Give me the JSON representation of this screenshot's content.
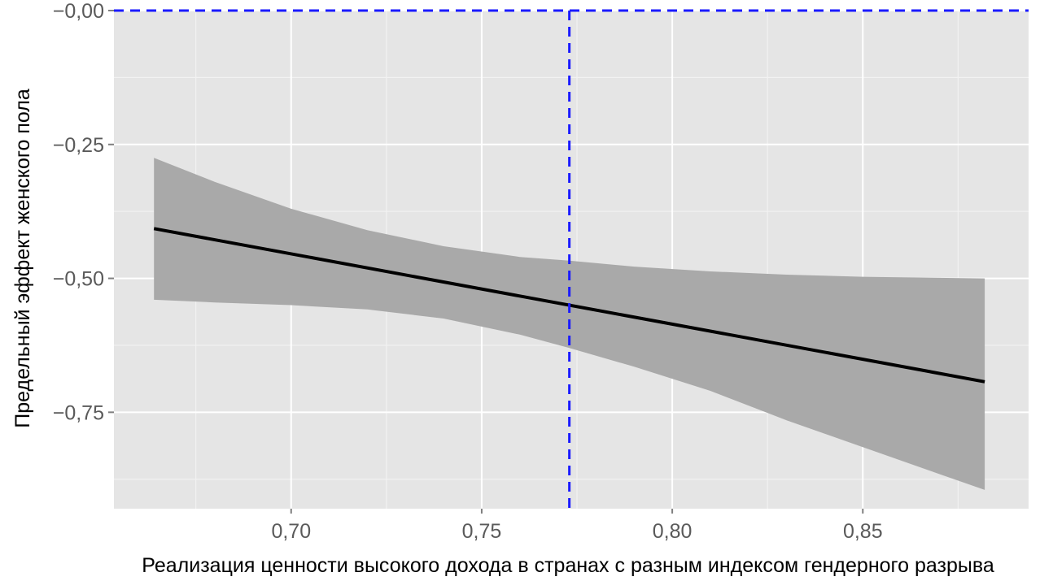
{
  "chart_data": {
    "type": "line",
    "title": "",
    "xlabel": "Реализация ценности высокого дохода в странах с разным индексом гендерного разрыва",
    "ylabel": "Предельный эффект женского пола",
    "xlim": [
      0.6535,
      0.8935
    ],
    "ylim": [
      0.0,
      0.93
    ],
    "y_axis_inverted": true,
    "x_ticks": [
      0.7,
      0.75,
      0.8,
      0.85
    ],
    "x_tick_labels": [
      "0,70",
      "0,75",
      "0,80",
      "0,85"
    ],
    "y_ticks": [
      0.0,
      0.25,
      0.5,
      0.75
    ],
    "y_tick_labels": [
      "0,00",
      "0,25",
      "0,50",
      "0,75"
    ],
    "grid": true,
    "series": [
      {
        "kind": "line",
        "x": [
          0.664,
          0.882
        ],
        "y": [
          0.407,
          0.693
        ]
      },
      {
        "kind": "confidence_band",
        "x": [
          0.664,
          0.68,
          0.7,
          0.72,
          0.74,
          0.76,
          0.773,
          0.79,
          0.81,
          0.83,
          0.85,
          0.87,
          0.882
        ],
        "lower": [
          0.275,
          0.32,
          0.37,
          0.41,
          0.44,
          0.46,
          0.467,
          0.478,
          0.487,
          0.493,
          0.497,
          0.499,
          0.5
        ],
        "upper": [
          0.54,
          0.545,
          0.55,
          0.558,
          0.575,
          0.605,
          0.63,
          0.665,
          0.71,
          0.765,
          0.815,
          0.865,
          0.895
        ]
      }
    ],
    "reference_lines": [
      {
        "orientation": "horizontal",
        "value": 0.0,
        "color": "#1a1aff",
        "style": "dashed"
      },
      {
        "orientation": "vertical",
        "value": 0.773,
        "color": "#1a1aff",
        "style": "dashed"
      }
    ],
    "colors": {
      "panel": "#e5e5e5",
      "grid_major": "#ffffff",
      "grid_minor": "#f2f2f2",
      "band": "#a9a9a9",
      "line": "#000000",
      "ref": "#1a1aff"
    }
  }
}
